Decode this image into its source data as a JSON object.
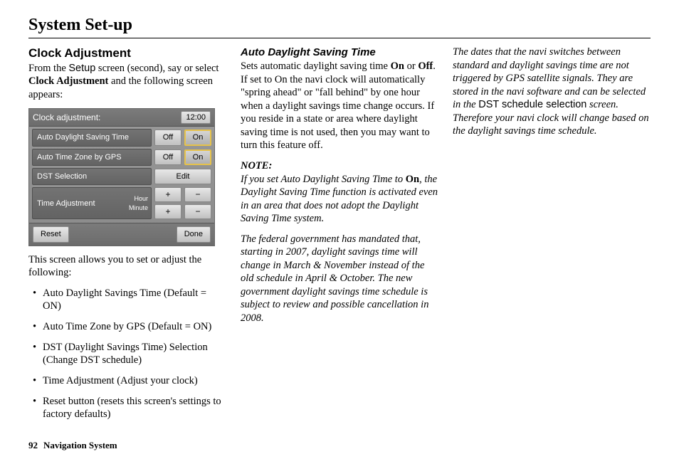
{
  "page": {
    "title": "System Set-up",
    "number": "92",
    "footer_label": "Navigation System"
  },
  "col1": {
    "heading": "Clock Adjustment",
    "intro_prefix": "From the ",
    "setup_word": "Setup",
    "intro_mid": " screen (second), say or select ",
    "clock_adj_bold": "Clock Adjustment",
    "intro_suffix": " and the following screen appears:",
    "after_shot": "This screen allows you to set or adjust the following:",
    "bullets": [
      "Auto Daylight Savings Time (Default = ON)",
      "Auto Time Zone by GPS (Default = ON)",
      "DST (Daylight Savings Time) Selection (Change DST schedule)",
      "Time Adjustment (Adjust your clock)",
      "Reset button (resets this screen's settings to factory defaults)"
    ]
  },
  "device": {
    "title": "Clock adjustment:",
    "clock": "12:00",
    "row1_label": "Auto Daylight Saving Time",
    "row2_label": "Auto Time Zone by GPS",
    "row3_label": "DST Selection",
    "row4_label": "Time Adjustment",
    "row4_sub1": "Hour",
    "row4_sub2": "Minute",
    "off": "Off",
    "on": "On",
    "edit": "Edit",
    "plus": "+",
    "minus": "−",
    "reset": "Reset",
    "done": "Done",
    "colors": {
      "panel_bg": "#8a8a8a",
      "row_bg": "#6b6b6b",
      "btn_bg": "#d0d0d0",
      "highlight_border": "#e6c24a"
    }
  },
  "col2": {
    "heading": "Auto Daylight Saving Time",
    "p1_a": "Sets automatic daylight saving time ",
    "p1_on": "On",
    "p1_b": " or ",
    "p1_off": "Off",
    "p1_c": ". If set to On the navi clock will automatically \"spring ahead\" or \"fall behind\" by one hour when a daylight savings time change occurs. If you reside in a state or area where daylight saving time is not used, then you may want to turn this feature off.",
    "note_label": "NOTE:",
    "note_a": "If you set Auto Daylight Saving Time to ",
    "note_on": "On",
    "note_b": ", the Daylight Saving Time function is activated even in an area that does not adopt the Daylight Saving Time system.",
    "p2": "The federal government has mandated that, starting in 2007, daylight savings time will change in March & November instead of the old schedule in April & October. The new government daylight savings time schedule is subject to review and possible cancellation in 2008."
  },
  "col3": {
    "p_a": "The dates that the navi switches between standard and daylight savings time are not triggered by GPS satellite signals. They are stored in the navi software and can be selected in the ",
    "dst_sel": "DST schedule selection",
    "p_b": " screen. Therefore your navi clock will change based on the daylight savings time schedule."
  }
}
